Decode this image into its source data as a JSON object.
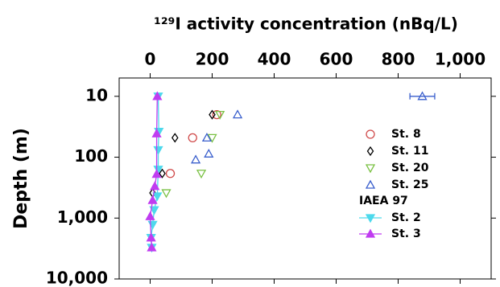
{
  "chart_data": {
    "type": "scatter",
    "title": "¹²⁹I activity concentration (nBq/L)",
    "y_label": "Depth (m)",
    "xlim": [
      -100,
      1100
    ],
    "xticks": [
      0,
      200,
      400,
      600,
      800,
      {
        "value": 1000,
        "label": "1,000"
      }
    ],
    "ylim": [
      5,
      10000
    ],
    "ylog": true,
    "y_inverted": true,
    "yticks": [
      10,
      100,
      {
        "value": 1000,
        "label": "1,000"
      },
      {
        "value": 10000,
        "label": "10,000"
      }
    ],
    "legend_subheading": "IAEA 97",
    "series": [
      {
        "name": "St. 8",
        "color": "#d04a4a",
        "marker": "circle",
        "line": false,
        "x": [
          215,
          137,
          65
        ],
        "values": [
          20,
          48,
          185
        ]
      },
      {
        "name": "St. 11",
        "color": "#000000",
        "marker": "diamond",
        "line": false,
        "x": [
          200,
          80,
          39,
          8
        ],
        "values": [
          20,
          48,
          185,
          387
        ]
      },
      {
        "name": "St. 20",
        "color": "#7ac143",
        "marker": "triangle-down",
        "line": false,
        "x": [
          225,
          200,
          165,
          52
        ],
        "values": [
          20,
          48,
          185,
          387
        ]
      },
      {
        "name": "St. 25",
        "color": "#3a5fcd",
        "marker": "triangle-up",
        "line": false,
        "x": [
          878,
          282,
          183,
          189,
          147
        ],
        "values": [
          10,
          20,
          48,
          88,
          110
        ],
        "xerr": [
          40,
          null,
          null,
          null,
          null
        ]
      },
      {
        "name": "St. 2",
        "color": "#4dd9ec",
        "marker": "triangle-down",
        "line": true,
        "x": [
          26,
          28,
          26,
          26,
          23,
          13,
          8,
          3,
          5
        ],
        "values": [
          10,
          38,
          76,
          159,
          436,
          736,
          1280,
          2100,
          3050
        ]
      },
      {
        "name": "St. 3",
        "color": "#c03cf0",
        "marker": "triangle-up",
        "line": true,
        "x": [
          23,
          21,
          21,
          15,
          8,
          0,
          3,
          5
        ],
        "values": [
          10,
          41,
          190,
          300,
          510,
          940,
          2100,
          3050
        ]
      }
    ]
  }
}
